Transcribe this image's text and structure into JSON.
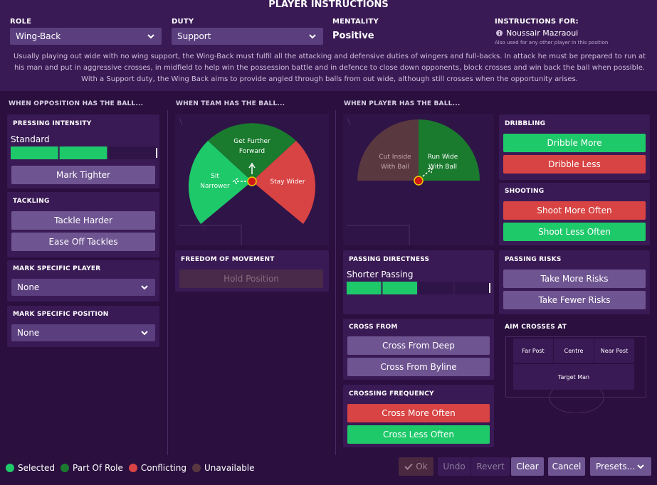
{
  "title": "PLAYER INSTRUCTIONS",
  "header": {
    "role_label": "ROLE",
    "role_value": "Wing-Back",
    "duty_label": "DUTY",
    "duty_value": "Support",
    "mentality_label": "MENTALITY",
    "mentality_value": "Positive",
    "instructions_for_label": "INSTRUCTIONS FOR:",
    "player_name": "Noussair Mazraoui",
    "also_used_text": "Also used for any other player in this position",
    "description": "Usually playing out wide with no wing support, the Wing-Back must fulfil all the attacking and defensive duties of wingers and full-backs. In attack he must be prepared to run at his man and put in aggressive crosses, in midfield to help win the possession battle and in defence to close down opponents, block crosses and win back the ball when possible. With a Support duty, the Wing Back aims to provide angled through balls from out wide, although still crosses when the opportunity arises."
  },
  "sections": {
    "opposition": "WHEN OPPOSITION HAS THE BALL...",
    "team": "WHEN TEAM HAS THE BALL...",
    "player": "WHEN PLAYER HAS THE BALL..."
  },
  "pressing": {
    "title": "PRESSING INTENSITY",
    "value": "Standard",
    "level": 2,
    "max": 3,
    "mark_tighter": "Mark Tighter"
  },
  "tackling": {
    "title": "TACKLING",
    "harder": "Tackle Harder",
    "ease_off": "Ease Off Tackles"
  },
  "mark_player": {
    "title": "MARK SPECIFIC PLAYER",
    "value": "None"
  },
  "mark_position": {
    "title": "MARK SPECIFIC POSITION",
    "value": "None"
  },
  "team_ball": {
    "forward": "Get Further Forward",
    "forward_l1": "Get Further",
    "forward_l2": "Forward",
    "narrower_l1": "Sit",
    "narrower_l2": "Narrower",
    "wider": "Stay Wider"
  },
  "freedom": {
    "title": "FREEDOM OF MOVEMENT",
    "hold": "Hold Position"
  },
  "player_ball": {
    "cut_l1": "Cut Inside",
    "cut_l2": "With Ball",
    "run_l1": "Run Wide",
    "run_l2": "With Ball"
  },
  "dribbling": {
    "title": "DRIBBLING",
    "more": "Dribble More",
    "less": "Dribble Less"
  },
  "shooting": {
    "title": "SHOOTING",
    "more": "Shoot More Often",
    "less": "Shoot Less Often"
  },
  "passing_directness": {
    "title": "PASSING DIRECTNESS",
    "value": "Shorter Passing",
    "level": 2,
    "max": 4
  },
  "passing_risks": {
    "title": "PASSING RISKS",
    "more": "Take More Risks",
    "fewer": "Take Fewer Risks"
  },
  "cross_from": {
    "title": "CROSS FROM",
    "deep": "Cross From Deep",
    "byline": "Cross From Byline"
  },
  "aim_crosses": {
    "title": "AIM CROSSES AT",
    "far": "Far Post",
    "centre": "Centre",
    "near": "Near Post",
    "target": "Target Man"
  },
  "crossing_frequency": {
    "title": "CROSSING FREQUENCY",
    "more": "Cross More Often",
    "less": "Cross Less Often"
  },
  "legend": {
    "selected": "Selected",
    "part_of_role": "Part Of Role",
    "conflicting": "Conflicting",
    "unavailable": "Unavailable"
  },
  "footer": {
    "ok": "Ok",
    "undo": "Undo",
    "revert": "Revert",
    "clear": "Clear",
    "cancel": "Cancel",
    "presets": "Presets..."
  },
  "colors": {
    "selected": "#1ec96a",
    "part_of_role": "#1a7a2e",
    "conflicting": "#d84343",
    "unavailable": "#5a3840",
    "button": "#6e5491"
  }
}
